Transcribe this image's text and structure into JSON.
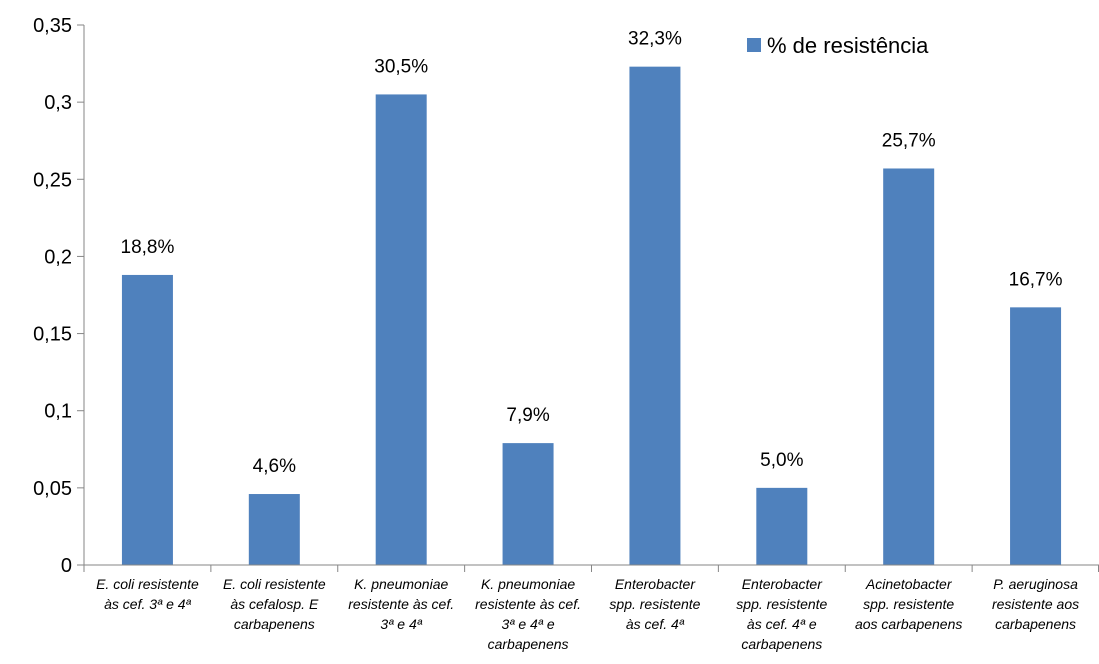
{
  "chart_data": {
    "type": "bar",
    "categories": [
      [
        "E. coli resistente",
        "às cef. 3ª e 4ª"
      ],
      [
        "E. coli resistente",
        "às cefalosp. E",
        "carbapenens"
      ],
      [
        "K. pneumoniae",
        "resistente às cef.",
        "3ª e 4ª"
      ],
      [
        "K. pneumoniae",
        "resistente às cef.",
        "3ª e 4ª e",
        "carbapenens"
      ],
      [
        "Enterobacter",
        "spp. resistente",
        "às cef. 4ª"
      ],
      [
        "Enterobacter",
        "spp. resistente",
        "às cef. 4ª e",
        "carbapenens"
      ],
      [
        "Acinetobacter",
        "spp. resistente",
        "aos carbapenens"
      ],
      [
        "P. aeruginosa",
        "resistente aos",
        "carbapenens"
      ]
    ],
    "series": [
      {
        "name": "% de resistência",
        "values": [
          0.188,
          0.046,
          0.305,
          0.079,
          0.323,
          0.05,
          0.257,
          0.167
        ],
        "labels": [
          "18,8%",
          "4,6%",
          "30,5%",
          "7,9%",
          "32,3%",
          "5,0%",
          "25,7%",
          "16,7%"
        ],
        "color": "#4f81bd"
      }
    ],
    "ylim": [
      0,
      0.35
    ],
    "yticks": [
      0,
      0.05,
      0.1,
      0.15,
      0.2,
      0.25,
      0.3,
      0.35
    ],
    "ytick_labels": [
      "0",
      "0,05",
      "0,1",
      "0,15",
      "0,2",
      "0,25",
      "0,3",
      "0,35"
    ],
    "title": "",
    "xlabel": "",
    "ylabel": "",
    "grid": false,
    "legend": "top-right"
  }
}
